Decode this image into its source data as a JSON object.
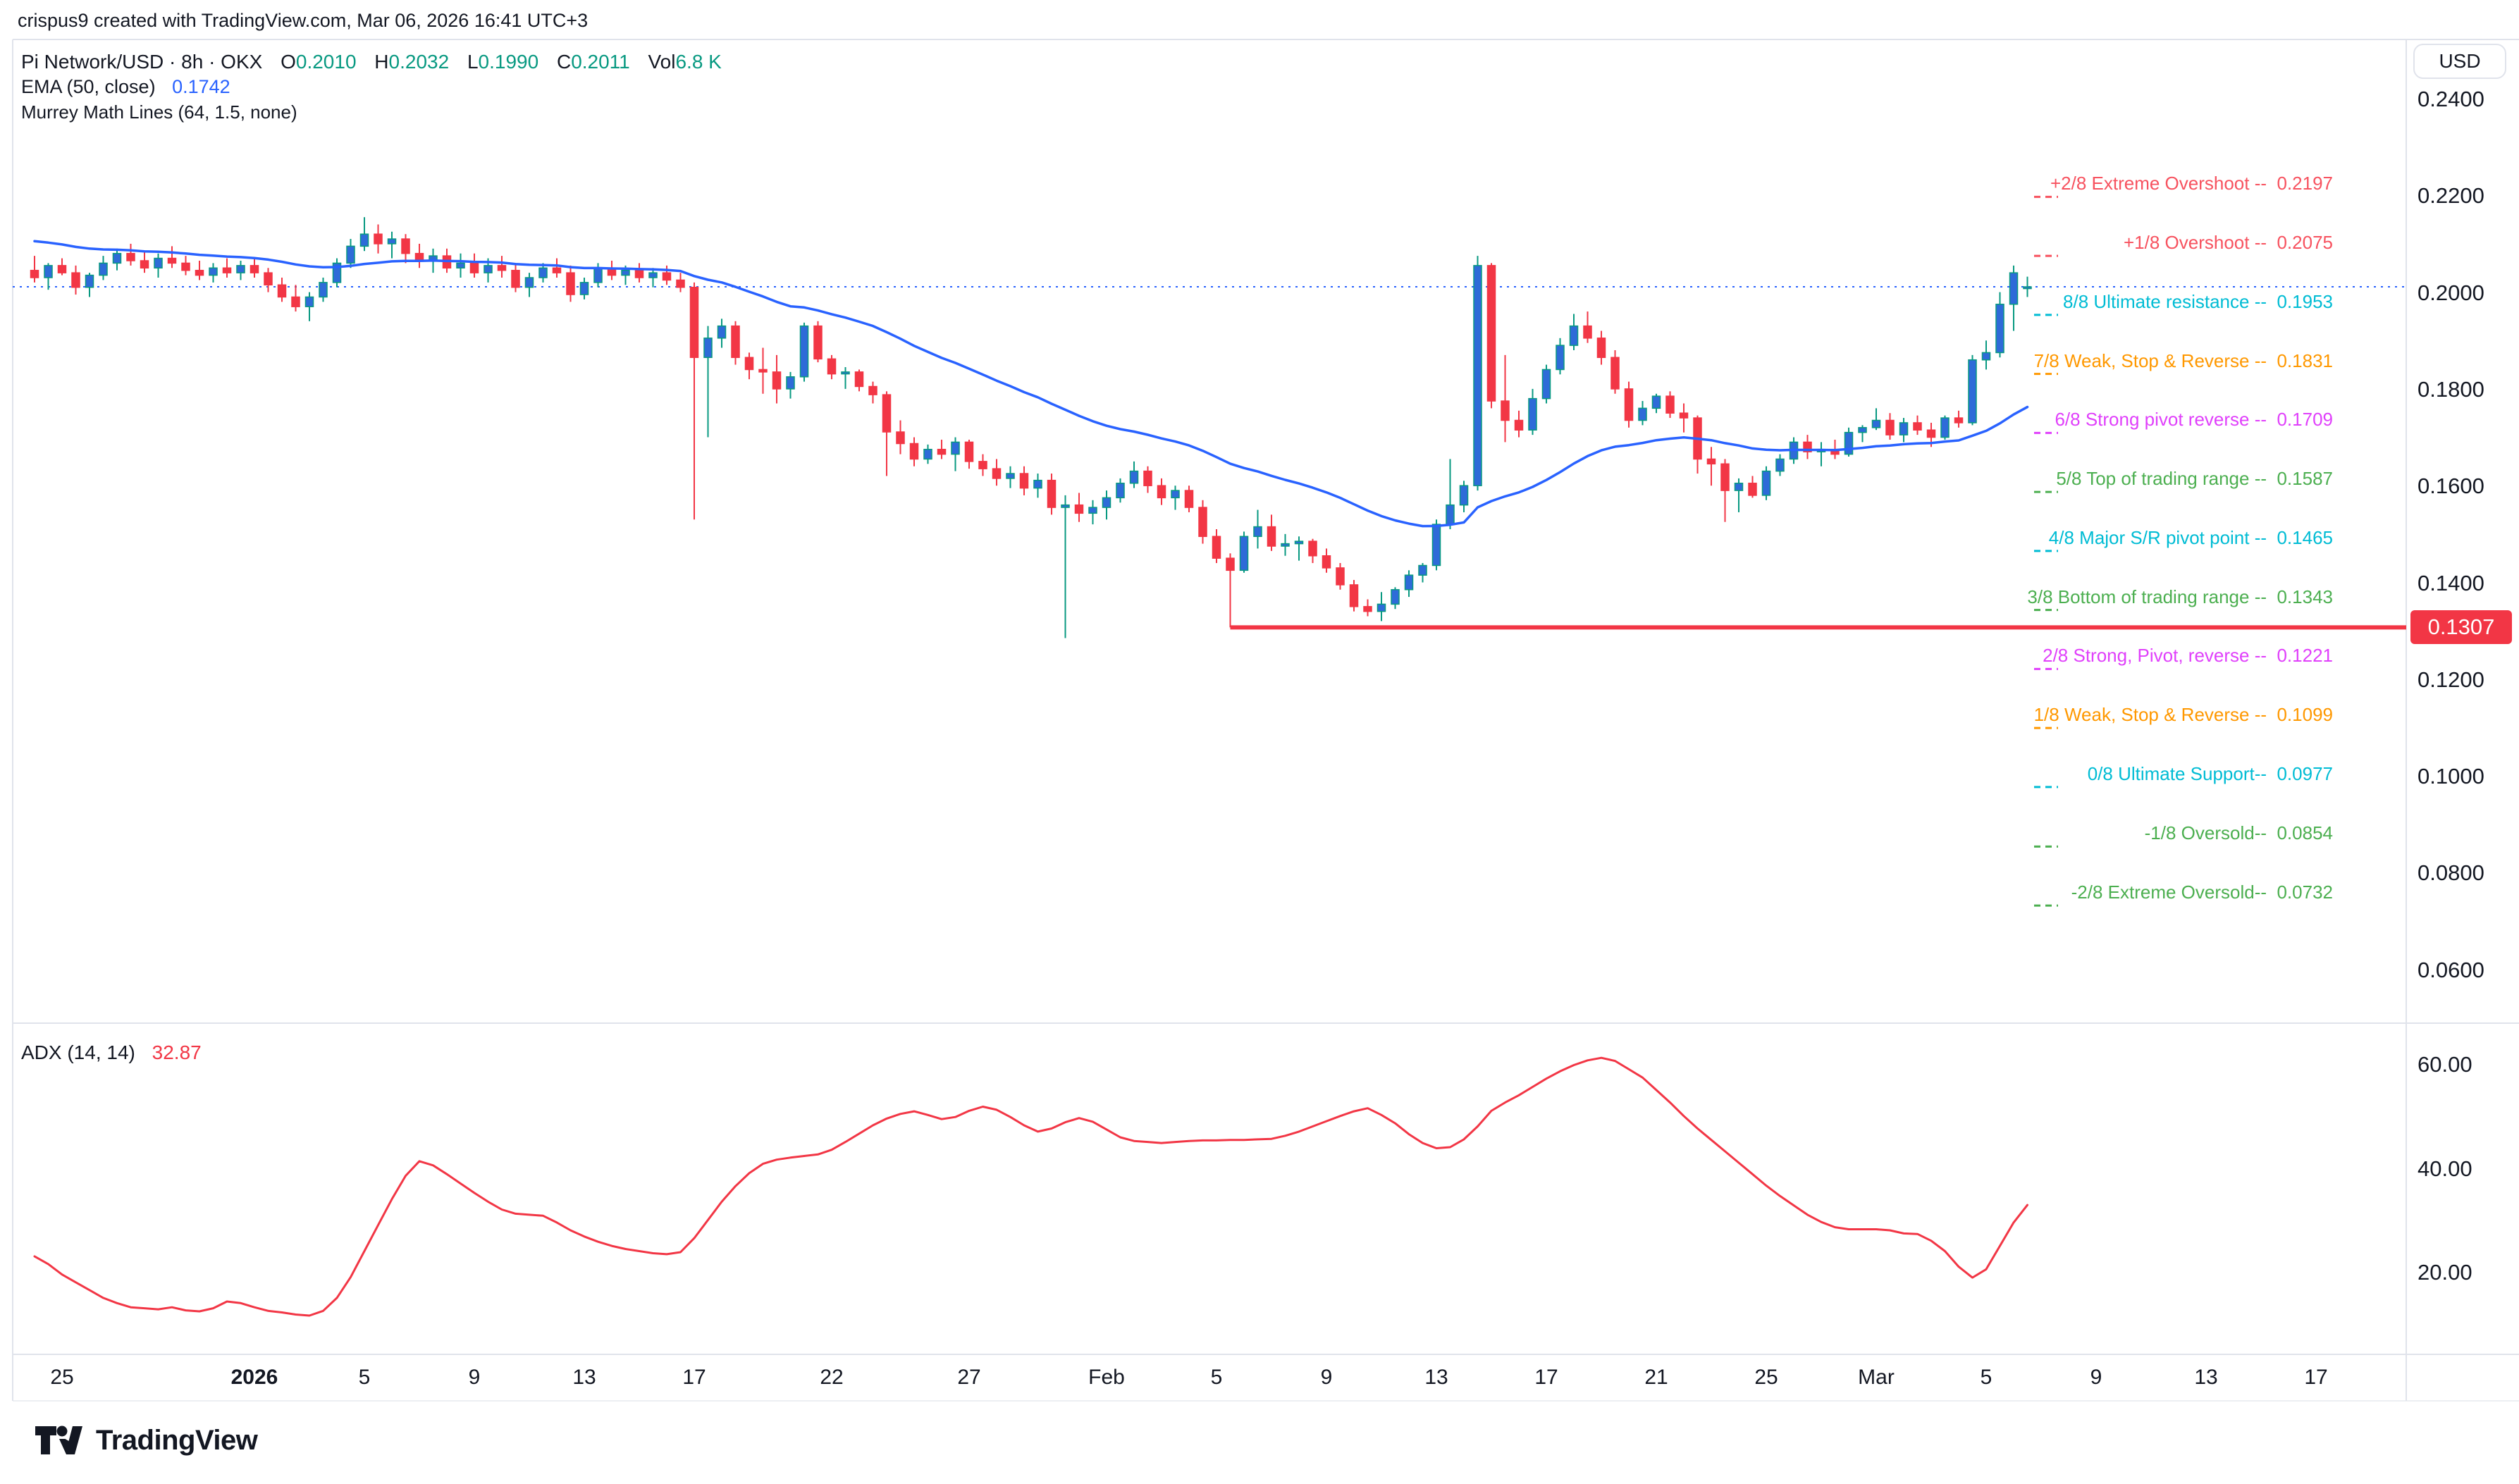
{
  "header": {
    "title": "crispus9 created with TradingView.com, Mar 06, 2026 16:41 UTC+3"
  },
  "legend": {
    "symbol": "Pi Network/USD · 8h · OKX",
    "ohlc": [
      {
        "k": "O",
        "v": "0.2010"
      },
      {
        "k": "H",
        "v": "0.2032"
      },
      {
        "k": "L",
        "v": "0.1990"
      },
      {
        "k": "C",
        "v": "0.2011"
      }
    ],
    "volume": {
      "k": "Vol",
      "v": "6.8 K"
    },
    "ema": {
      "label": "EMA (50, close)",
      "value": "0.1742"
    },
    "mml": {
      "label": "Murrey Math Lines (64, 1.5, none)"
    }
  },
  "price_scale": {
    "currency": "USD",
    "ticks": [
      0.24,
      0.22,
      0.2,
      0.18,
      0.16,
      0.14,
      0.12,
      0.1,
      0.08,
      0.06
    ],
    "last_price_tag": "0.1307"
  },
  "murrey_levels": [
    {
      "text": "+2/8 Extreme Overshoot --  0.2197",
      "price": 0.2197,
      "color": "#f7525f"
    },
    {
      "text": "+1/8 Overshoot --  0.2075",
      "price": 0.2075,
      "color": "#f7525f"
    },
    {
      "text": "8/8 Ultimate resistance --  0.1953",
      "price": 0.1953,
      "color": "#00bcd4"
    },
    {
      "text": "7/8 Weak, Stop & Reverse --  0.1831",
      "price": 0.1831,
      "color": "#ff9800"
    },
    {
      "text": "6/8 Strong pivot reverse --  0.1709",
      "price": 0.1709,
      "color": "#e040fb"
    },
    {
      "text": "5/8 Top of trading range --  0.1587",
      "price": 0.1587,
      "color": "#4caf50"
    },
    {
      "text": "4/8 Major S/R pivot point --  0.1465",
      "price": 0.1465,
      "color": "#00bcd4"
    },
    {
      "text": "3/8 Bottom of trading range --  0.1343",
      "price": 0.1343,
      "color": "#4caf50"
    },
    {
      "text": "2/8 Strong, Pivot, reverse --  0.1221",
      "price": 0.1221,
      "color": "#e040fb"
    },
    {
      "text": "1/8 Weak, Stop & Reverse --  0.1099",
      "price": 0.1099,
      "color": "#ff9800"
    },
    {
      "text": "0/8 Ultimate Support--  0.0977",
      "price": 0.0977,
      "color": "#00bcd4"
    },
    {
      "text": "-1/8 Oversold--  0.0854",
      "price": 0.0854,
      "color": "#4caf50"
    },
    {
      "text": "-2/8 Extreme Oversold--  0.0732",
      "price": 0.0732,
      "color": "#4caf50"
    }
  ],
  "adx_panel": {
    "label": "ADX (14, 14)",
    "value": "32.87",
    "ticks": [
      60,
      40,
      20
    ]
  },
  "time_scale": {
    "ticks": [
      {
        "label": "25",
        "day": 1
      },
      {
        "label": "2026",
        "day": 8,
        "bold": true
      },
      {
        "label": "5",
        "day": 12
      },
      {
        "label": "9",
        "day": 16
      },
      {
        "label": "13",
        "day": 20
      },
      {
        "label": "17",
        "day": 24
      },
      {
        "label": "22",
        "day": 29
      },
      {
        "label": "27",
        "day": 34
      },
      {
        "label": "Feb",
        "day": 39
      },
      {
        "label": "5",
        "day": 43
      },
      {
        "label": "9",
        "day": 47
      },
      {
        "label": "13",
        "day": 51
      },
      {
        "label": "17",
        "day": 55
      },
      {
        "label": "21",
        "day": 59
      },
      {
        "label": "25",
        "day": 63
      },
      {
        "label": "Mar",
        "day": 67
      },
      {
        "label": "5",
        "day": 71
      },
      {
        "label": "9",
        "day": 75
      },
      {
        "label": "13",
        "day": 79
      },
      {
        "label": "17",
        "day": 83
      }
    ]
  },
  "footer": {
    "brand": "TradingView"
  },
  "chart_data": {
    "type": "candlestick",
    "title": "Pi Network/USD, 8h, OKX — candlesticks with EMA(50, close), Murrey Math Lines (64, 1.5, none), support line 0.1307; ADX(14,14) sub-panel",
    "x_start_date": "2025-12-24",
    "candles_per_day": 2,
    "ylim": [
      0.05,
      0.2522
    ],
    "current_price_line": 0.2011,
    "support_line": {
      "price": 0.1307,
      "start_day_offset": 43.5
    },
    "ema": {
      "period": 50,
      "last": 0.1742
    },
    "candles": [
      [
        0.2045,
        0.2075,
        0.202,
        0.203
      ],
      [
        0.203,
        0.206,
        0.2005,
        0.2055
      ],
      [
        0.2055,
        0.207,
        0.2035,
        0.204
      ],
      [
        0.204,
        0.2055,
        0.1995,
        0.201
      ],
      [
        0.201,
        0.204,
        0.199,
        0.2035
      ],
      [
        0.2035,
        0.2075,
        0.2025,
        0.206
      ],
      [
        0.206,
        0.209,
        0.2045,
        0.208
      ],
      [
        0.208,
        0.21,
        0.2055,
        0.2065
      ],
      [
        0.2065,
        0.2085,
        0.204,
        0.205
      ],
      [
        0.205,
        0.208,
        0.203,
        0.207
      ],
      [
        0.207,
        0.2095,
        0.205,
        0.206
      ],
      [
        0.206,
        0.2075,
        0.2035,
        0.2045
      ],
      [
        0.2045,
        0.2065,
        0.2025,
        0.2035
      ],
      [
        0.2035,
        0.206,
        0.202,
        0.205
      ],
      [
        0.205,
        0.207,
        0.203,
        0.204
      ],
      [
        0.204,
        0.2065,
        0.2025,
        0.2055
      ],
      [
        0.2055,
        0.207,
        0.203,
        0.204
      ],
      [
        0.204,
        0.205,
        0.2,
        0.2015
      ],
      [
        0.2015,
        0.203,
        0.198,
        0.199
      ],
      [
        0.199,
        0.2015,
        0.196,
        0.197
      ],
      [
        0.197,
        0.2,
        0.194,
        0.199
      ],
      [
        0.199,
        0.203,
        0.198,
        0.202
      ],
      [
        0.202,
        0.207,
        0.201,
        0.206
      ],
      [
        0.206,
        0.211,
        0.205,
        0.2095
      ],
      [
        0.2095,
        0.2155,
        0.2085,
        0.212
      ],
      [
        0.212,
        0.214,
        0.208,
        0.21
      ],
      [
        0.21,
        0.2125,
        0.207,
        0.211
      ],
      [
        0.211,
        0.212,
        0.206,
        0.208
      ],
      [
        0.208,
        0.21,
        0.205,
        0.2065
      ],
      [
        0.2065,
        0.209,
        0.204,
        0.2075
      ],
      [
        0.2075,
        0.209,
        0.204,
        0.205
      ],
      [
        0.205,
        0.208,
        0.203,
        0.206
      ],
      [
        0.206,
        0.208,
        0.203,
        0.204
      ],
      [
        0.204,
        0.207,
        0.202,
        0.2055
      ],
      [
        0.2055,
        0.2075,
        0.203,
        0.2045
      ],
      [
        0.2045,
        0.206,
        0.2,
        0.201
      ],
      [
        0.201,
        0.204,
        0.199,
        0.203
      ],
      [
        0.203,
        0.206,
        0.202,
        0.205
      ],
      [
        0.205,
        0.207,
        0.203,
        0.204
      ],
      [
        0.204,
        0.2055,
        0.198,
        0.1995
      ],
      [
        0.1995,
        0.203,
        0.1985,
        0.202
      ],
      [
        0.202,
        0.206,
        0.201,
        0.205
      ],
      [
        0.205,
        0.2065,
        0.2025,
        0.2035
      ],
      [
        0.2035,
        0.2055,
        0.2015,
        0.2045
      ],
      [
        0.2045,
        0.206,
        0.202,
        0.203
      ],
      [
        0.203,
        0.205,
        0.201,
        0.204
      ],
      [
        0.204,
        0.2055,
        0.2015,
        0.2025
      ],
      [
        0.2025,
        0.204,
        0.2,
        0.201
      ],
      [
        0.201,
        0.202,
        0.153,
        0.1865
      ],
      [
        0.1865,
        0.193,
        0.17,
        0.1905
      ],
      [
        0.1905,
        0.1945,
        0.1885,
        0.193
      ],
      [
        0.193,
        0.194,
        0.185,
        0.1865
      ],
      [
        0.1865,
        0.1875,
        0.182,
        0.184
      ],
      [
        0.184,
        0.1885,
        0.179,
        0.1835
      ],
      [
        0.1835,
        0.187,
        0.177,
        0.18
      ],
      [
        0.18,
        0.1835,
        0.178,
        0.1825
      ],
      [
        0.1825,
        0.1937,
        0.1815,
        0.193
      ],
      [
        0.193,
        0.194,
        0.1855,
        0.1862
      ],
      [
        0.1862,
        0.187,
        0.182,
        0.1831
      ],
      [
        0.1831,
        0.1845,
        0.18,
        0.1835
      ],
      [
        0.1835,
        0.184,
        0.1795,
        0.1805
      ],
      [
        0.1805,
        0.1815,
        0.177,
        0.1788
      ],
      [
        0.1788,
        0.1795,
        0.162,
        0.1711
      ],
      [
        0.1711,
        0.1735,
        0.1665,
        0.1687
      ],
      [
        0.1687,
        0.17,
        0.164,
        0.1655
      ],
      [
        0.1655,
        0.1685,
        0.1645,
        0.1675
      ],
      [
        0.1675,
        0.1695,
        0.1655,
        0.1665
      ],
      [
        0.1665,
        0.17,
        0.163,
        0.169
      ],
      [
        0.169,
        0.1695,
        0.1635,
        0.165
      ],
      [
        0.165,
        0.1665,
        0.162,
        0.1635
      ],
      [
        0.1635,
        0.1655,
        0.16,
        0.1615
      ],
      [
        0.1615,
        0.164,
        0.1595,
        0.1625
      ],
      [
        0.1625,
        0.164,
        0.158,
        0.1595
      ],
      [
        0.1595,
        0.1625,
        0.1575,
        0.1611
      ],
      [
        0.1611,
        0.1625,
        0.154,
        0.1555
      ],
      [
        0.1555,
        0.158,
        0.1285,
        0.156
      ],
      [
        0.156,
        0.1585,
        0.1525,
        0.1543
      ],
      [
        0.1543,
        0.157,
        0.152,
        0.1555
      ],
      [
        0.1555,
        0.159,
        0.153,
        0.1575
      ],
      [
        0.1575,
        0.1615,
        0.1565,
        0.1605
      ],
      [
        0.1605,
        0.165,
        0.1595,
        0.163
      ],
      [
        0.163,
        0.164,
        0.1585,
        0.16
      ],
      [
        0.16,
        0.1615,
        0.156,
        0.1575
      ],
      [
        0.1575,
        0.16,
        0.155,
        0.159
      ],
      [
        0.159,
        0.16,
        0.1545,
        0.1555
      ],
      [
        0.1555,
        0.157,
        0.148,
        0.1495
      ],
      [
        0.1495,
        0.151,
        0.144,
        0.145
      ],
      [
        0.145,
        0.146,
        0.1307,
        0.1425
      ],
      [
        0.1425,
        0.1505,
        0.142,
        0.1495
      ],
      [
        0.1495,
        0.155,
        0.147,
        0.1515
      ],
      [
        0.1515,
        0.154,
        0.1465,
        0.1475
      ],
      [
        0.1475,
        0.15,
        0.1455,
        0.148
      ],
      [
        0.148,
        0.1495,
        0.1445,
        0.1485
      ],
      [
        0.1485,
        0.149,
        0.144,
        0.1455
      ],
      [
        0.1455,
        0.147,
        0.142,
        0.143
      ],
      [
        0.143,
        0.144,
        0.1385,
        0.1395
      ],
      [
        0.1395,
        0.1405,
        0.134,
        0.135
      ],
      [
        0.135,
        0.1365,
        0.133,
        0.134
      ],
      [
        0.134,
        0.138,
        0.132,
        0.1355
      ],
      [
        0.1355,
        0.139,
        0.1345,
        0.1385
      ],
      [
        0.1385,
        0.1425,
        0.137,
        0.1415
      ],
      [
        0.1415,
        0.144,
        0.14,
        0.1435
      ],
      [
        0.1435,
        0.153,
        0.1425,
        0.152
      ],
      [
        0.152,
        0.1655,
        0.151,
        0.156
      ],
      [
        0.156,
        0.161,
        0.1545,
        0.16
      ],
      [
        0.16,
        0.2075,
        0.159,
        0.2055
      ],
      [
        0.2055,
        0.206,
        0.176,
        0.1775
      ],
      [
        0.1775,
        0.187,
        0.169,
        0.1735
      ],
      [
        0.1735,
        0.1755,
        0.17,
        0.1715
      ],
      [
        0.1715,
        0.18,
        0.1705,
        0.178
      ],
      [
        0.178,
        0.185,
        0.177,
        0.184
      ],
      [
        0.184,
        0.1905,
        0.183,
        0.189
      ],
      [
        0.189,
        0.1955,
        0.188,
        0.193
      ],
      [
        0.193,
        0.196,
        0.1895,
        0.1905
      ],
      [
        0.1905,
        0.192,
        0.185,
        0.1865
      ],
      [
        0.1865,
        0.188,
        0.179,
        0.18
      ],
      [
        0.18,
        0.1815,
        0.172,
        0.1735
      ],
      [
        0.1735,
        0.1775,
        0.1725,
        0.176
      ],
      [
        0.176,
        0.179,
        0.175,
        0.1785
      ],
      [
        0.1785,
        0.1795,
        0.174,
        0.175
      ],
      [
        0.175,
        0.177,
        0.171,
        0.174
      ],
      [
        0.174,
        0.1745,
        0.1625,
        0.1655
      ],
      [
        0.1655,
        0.168,
        0.16,
        0.1645
      ],
      [
        0.1645,
        0.1655,
        0.1525,
        0.159
      ],
      [
        0.159,
        0.1615,
        0.1545,
        0.1605
      ],
      [
        0.1605,
        0.162,
        0.1575,
        0.158
      ],
      [
        0.158,
        0.164,
        0.157,
        0.163
      ],
      [
        0.163,
        0.1665,
        0.162,
        0.1655
      ],
      [
        0.1655,
        0.17,
        0.1645,
        0.169
      ],
      [
        0.169,
        0.1705,
        0.1655,
        0.167
      ],
      [
        0.167,
        0.169,
        0.164,
        0.1675
      ],
      [
        0.1675,
        0.1695,
        0.1655,
        0.1665
      ],
      [
        0.1665,
        0.172,
        0.166,
        0.171
      ],
      [
        0.171,
        0.1725,
        0.169,
        0.172
      ],
      [
        0.172,
        0.176,
        0.1715,
        0.1735
      ],
      [
        0.1735,
        0.175,
        0.1695,
        0.1705
      ],
      [
        0.1705,
        0.174,
        0.169,
        0.173
      ],
      [
        0.173,
        0.1745,
        0.1705,
        0.1715
      ],
      [
        0.1715,
        0.173,
        0.168,
        0.17
      ],
      [
        0.17,
        0.1745,
        0.1695,
        0.174
      ],
      [
        0.174,
        0.1755,
        0.172,
        0.173
      ],
      [
        0.173,
        0.187,
        0.1725,
        0.186
      ],
      [
        0.186,
        0.19,
        0.184,
        0.1875
      ],
      [
        0.1875,
        0.2,
        0.1865,
        0.1975
      ],
      [
        0.1975,
        0.2055,
        0.192,
        0.204
      ],
      [
        0.201,
        0.2032,
        0.199,
        0.2011
      ]
    ],
    "adx": {
      "params": [
        14,
        14
      ],
      "last": 32.87,
      "ylim_ticks": [
        60,
        40,
        20
      ],
      "values": [
        23.0,
        21.5,
        19.5,
        18.0,
        16.5,
        15.0,
        14.0,
        13.2,
        13.0,
        12.8,
        13.2,
        12.6,
        12.4,
        13.0,
        14.3,
        14.0,
        13.2,
        12.5,
        12.2,
        11.8,
        11.6,
        12.5,
        15.0,
        19.0,
        24.0,
        29.0,
        34.0,
        38.5,
        41.3,
        40.5,
        38.8,
        37.0,
        35.2,
        33.5,
        32.0,
        31.2,
        31.0,
        30.8,
        29.5,
        28.0,
        26.8,
        25.8,
        25.0,
        24.4,
        24.0,
        23.6,
        23.4,
        23.8,
        26.5,
        30.0,
        33.5,
        36.5,
        39.0,
        40.8,
        41.6,
        42.0,
        42.3,
        42.6,
        43.5,
        45.0,
        46.6,
        48.2,
        49.5,
        50.4,
        50.9,
        50.2,
        49.4,
        49.8,
        51.0,
        51.8,
        51.2,
        49.8,
        48.2,
        47.0,
        47.6,
        48.8,
        49.6,
        48.9,
        47.4,
        45.9,
        45.2,
        45.0,
        44.8,
        45.0,
        45.2,
        45.3,
        45.3,
        45.4,
        45.4,
        45.5,
        45.6,
        46.2,
        47.0,
        48.0,
        49.0,
        50.0,
        50.9,
        51.5,
        50.2,
        48.6,
        46.5,
        44.8,
        43.8,
        44.0,
        45.5,
        48.0,
        51.0,
        52.6,
        54.0,
        55.6,
        57.2,
        58.6,
        59.8,
        60.7,
        61.2,
        60.6,
        59.0,
        57.4,
        55.0,
        52.6,
        50.0,
        47.6,
        45.4,
        43.2,
        41.0,
        38.8,
        36.6,
        34.6,
        32.8,
        31.0,
        29.6,
        28.6,
        28.2,
        28.2,
        28.2,
        28.0,
        27.4,
        27.3,
        26.0,
        24.0,
        21.0,
        18.9,
        20.5,
        25.0,
        29.5,
        32.87
      ]
    },
    "colors": {
      "up_body": "#2e6bd8",
      "up_wick": "#089981",
      "down": "#f23645",
      "ema": "#2962ff",
      "current_price_line": "#2962ff",
      "support_line": "#f23645",
      "adx_line": "#f23645",
      "text": "#131722",
      "border": "#e0e3eb",
      "tag_bg": "#f23645"
    },
    "legend_hint": {
      "grid": false,
      "background": "#ffffff"
    }
  }
}
